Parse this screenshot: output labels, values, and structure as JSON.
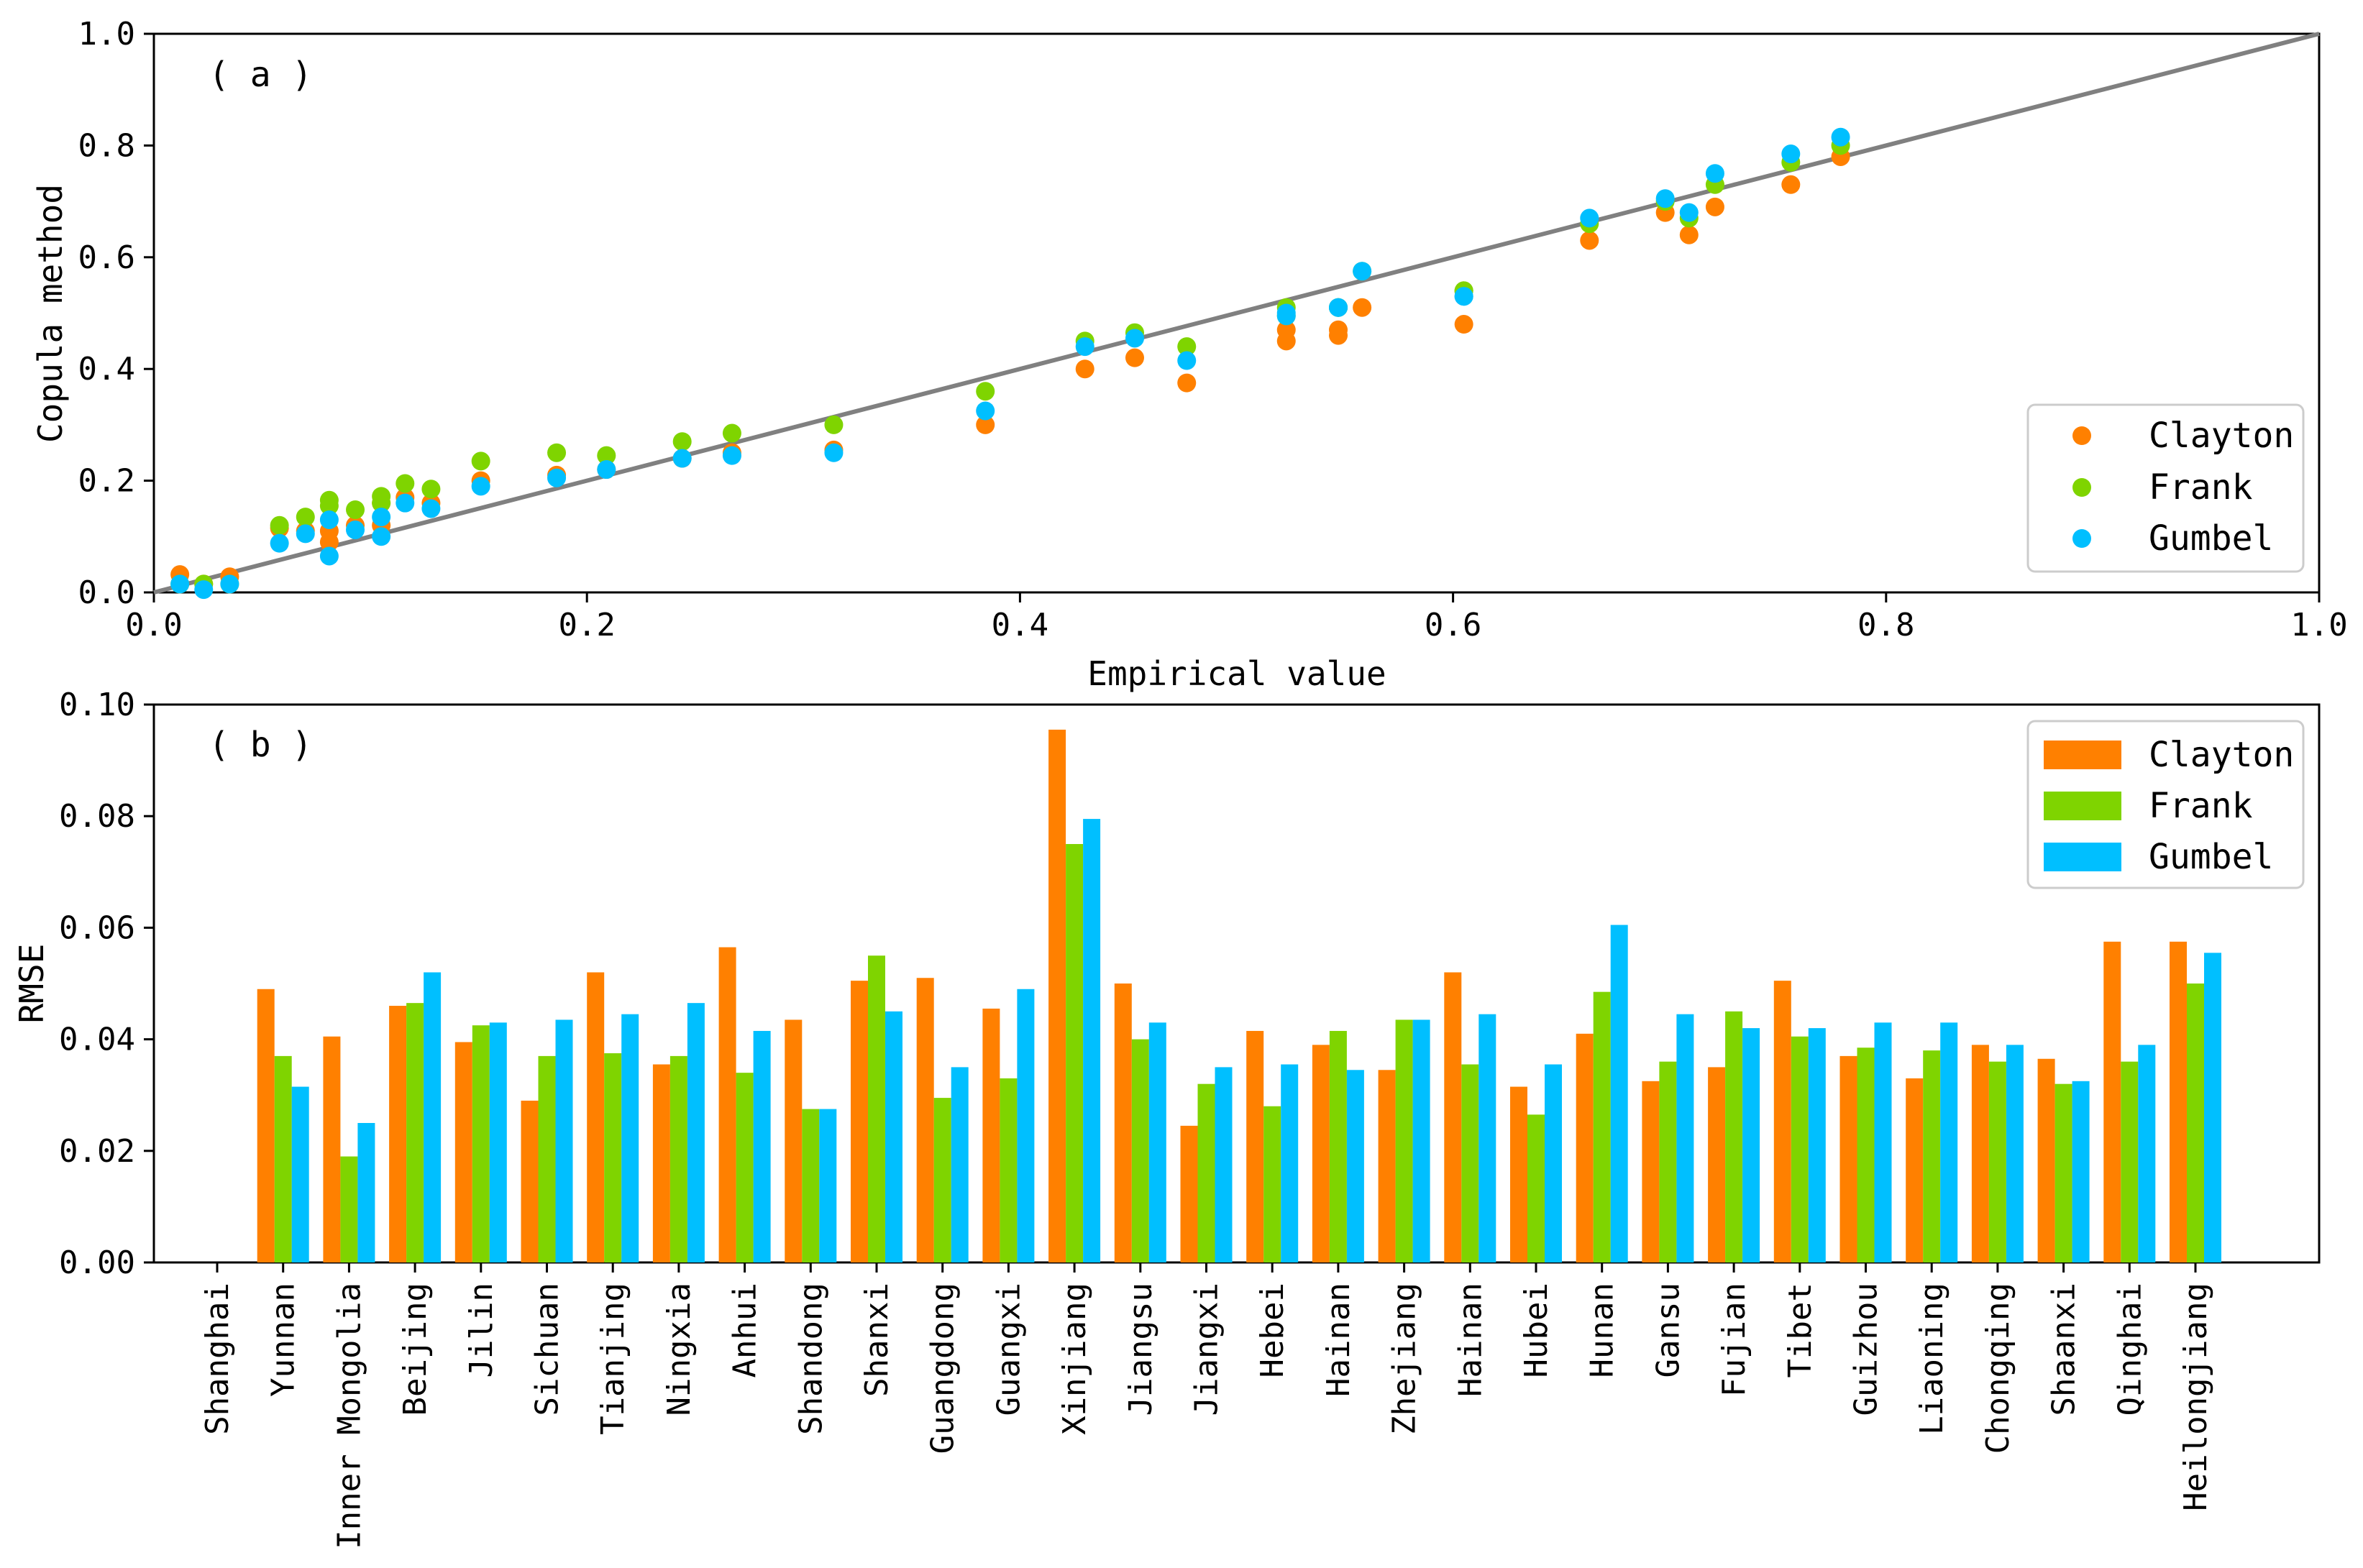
{
  "chart_data": [
    {
      "type": "scatter",
      "panel_label": "( a )",
      "xlabel": "Empirical value",
      "ylabel": "Copula method",
      "xlim": [
        0.0,
        1.0
      ],
      "ylim": [
        0.0,
        1.0
      ],
      "xticks": [
        "0.0",
        "0.2",
        "0.4",
        "0.6",
        "0.8",
        "1.0"
      ],
      "yticks": [
        "0.0",
        "0.2",
        "0.4",
        "0.6",
        "0.8",
        "1.0"
      ],
      "reference_line": {
        "from": [
          0,
          0
        ],
        "to": [
          1,
          1
        ],
        "color": "#808080"
      },
      "legend_position": "lower-right",
      "x": [
        0.012,
        0.023,
        0.035,
        0.058,
        0.07,
        0.081,
        0.081,
        0.093,
        0.105,
        0.105,
        0.116,
        0.128,
        0.151,
        0.186,
        0.209,
        0.244,
        0.267,
        0.314,
        0.384,
        0.43,
        0.453,
        0.477,
        0.523,
        0.523,
        0.547,
        0.547,
        0.558,
        0.605,
        0.605,
        0.663,
        0.698,
        0.709,
        0.721,
        0.756,
        0.779
      ],
      "series": [
        {
          "name": "Clayton",
          "color": "#ff8000",
          "y": [
            0.032,
            0.015,
            0.028,
            0.115,
            0.11,
            0.09,
            0.11,
            0.12,
            0.16,
            0.12,
            0.17,
            0.16,
            0.2,
            0.21,
            0.22,
            0.24,
            0.25,
            0.255,
            0.3,
            0.4,
            0.42,
            0.375,
            0.45,
            0.47,
            0.46,
            0.47,
            0.51,
            0.48,
            0.54,
            0.63,
            0.68,
            0.64,
            0.69,
            0.73,
            0.78
          ]
        },
        {
          "name": "Frank",
          "color": "#7fd400",
          "y": [
            0.015,
            0.015,
            0.015,
            0.12,
            0.135,
            0.165,
            0.155,
            0.148,
            0.172,
            0.16,
            0.195,
            0.185,
            0.235,
            0.25,
            0.245,
            0.27,
            0.285,
            0.3,
            0.36,
            0.45,
            0.465,
            0.44,
            0.51,
            0.495,
            0.51,
            0.51,
            0.575,
            0.54,
            0.54,
            0.66,
            0.7,
            0.67,
            0.73,
            0.77,
            0.8
          ]
        },
        {
          "name": "Gumbel",
          "color": "#00bfff",
          "y": [
            0.015,
            0.005,
            0.015,
            0.088,
            0.105,
            0.065,
            0.13,
            0.112,
            0.135,
            0.1,
            0.16,
            0.15,
            0.19,
            0.205,
            0.22,
            0.24,
            0.245,
            0.25,
            0.325,
            0.44,
            0.455,
            0.415,
            0.495,
            0.5,
            0.51,
            0.51,
            0.575,
            0.53,
            0.53,
            0.67,
            0.705,
            0.68,
            0.75,
            0.785,
            0.815
          ]
        }
      ]
    },
    {
      "type": "bar",
      "panel_label": "( b )",
      "xlabel": "",
      "ylabel": "RMSE",
      "ylim": [
        0.0,
        0.1
      ],
      "yticks": [
        "0.00",
        "0.02",
        "0.04",
        "0.06",
        "0.08",
        "0.10"
      ],
      "legend_position": "top-right",
      "categories": [
        "Shanghai",
        "Yunnan",
        "Inner Mongolia",
        "Beijing",
        "Jilin",
        "Sichuan",
        "Tianjing",
        "Ningxia",
        "Anhui",
        "Shandong",
        "Shanxi",
        "Guangdong",
        "Guangxi",
        "Xinjiang",
        "Jiangsu",
        "Jiangxi",
        "Hebei",
        "Hainan",
        "Zhejiang",
        "Hainan",
        "Hubei",
        "Hunan",
        "Gansu",
        "Fujian",
        "Tibet",
        "Guizhou",
        "Liaoning",
        "Chongqing",
        "Shaanxi",
        "Qinghai",
        "Heilongjiang"
      ],
      "series": [
        {
          "name": "Clayton",
          "color": "#ff8000",
          "values": [
            0,
            0.049,
            0.0405,
            0.046,
            0.0395,
            0.029,
            0.052,
            0.0355,
            0.0565,
            0.0435,
            0.0505,
            0.051,
            0.0455,
            0.0955,
            0.05,
            0.0245,
            0.0415,
            0.039,
            0.0345,
            0.052,
            0.0315,
            0.041,
            0.0325,
            0.035,
            0.0505,
            0.037,
            0.033,
            0.039,
            0.0365,
            0.0575,
            0.0575
          ]
        },
        {
          "name": "Frank",
          "color": "#7fd400",
          "values": [
            0,
            0.037,
            0.019,
            0.0465,
            0.0425,
            0.037,
            0.0375,
            0.037,
            0.034,
            0.0275,
            0.055,
            0.0295,
            0.033,
            0.075,
            0.04,
            0.032,
            0.028,
            0.0415,
            0.0435,
            0.0355,
            0.0265,
            0.0485,
            0.036,
            0.045,
            0.0405,
            0.0385,
            0.038,
            0.036,
            0.032,
            0.036,
            0.05
          ]
        },
        {
          "name": "Gumbel",
          "color": "#00bfff",
          "values": [
            0,
            0.0315,
            0.025,
            0.052,
            0.043,
            0.0435,
            0.0445,
            0.0465,
            0.0415,
            0.0275,
            0.045,
            0.035,
            0.049,
            0.0795,
            0.043,
            0.035,
            0.0355,
            0.0345,
            0.0435,
            0.0445,
            0.0355,
            0.0605,
            0.0445,
            0.042,
            0.042,
            0.043,
            0.043,
            0.039,
            0.0325,
            0.039,
            0.0555
          ]
        }
      ]
    }
  ]
}
